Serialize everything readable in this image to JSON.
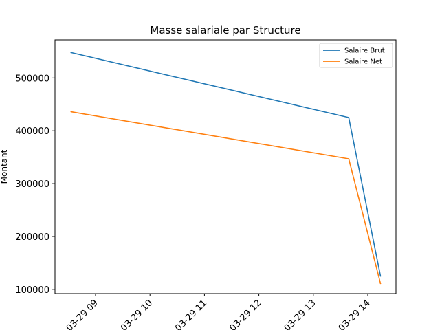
{
  "chart_data": {
    "type": "line",
    "title": "Masse salariale par Structure",
    "xlabel": "",
    "ylabel": "Montant",
    "x": [
      "03-29 08:33",
      "03-29 13:39",
      "03-29 14:14"
    ],
    "x_ticks": [
      "03-29 09",
      "03-29 10",
      "03-29 11",
      "03-29 12",
      "03-29 13",
      "03-29 14"
    ],
    "y_ticks": [
      100000,
      200000,
      300000,
      400000,
      500000
    ],
    "ylim": [
      92000,
      572000
    ],
    "series": [
      {
        "name": "Salaire Brut",
        "color": "#1f77b4",
        "values": [
          548000,
          425000,
          125000
        ]
      },
      {
        "name": "Salaire Net",
        "color": "#ff7f0e",
        "values": [
          436000,
          347000,
          111000
        ]
      }
    ],
    "grid": false,
    "legend_position": "top-right"
  }
}
